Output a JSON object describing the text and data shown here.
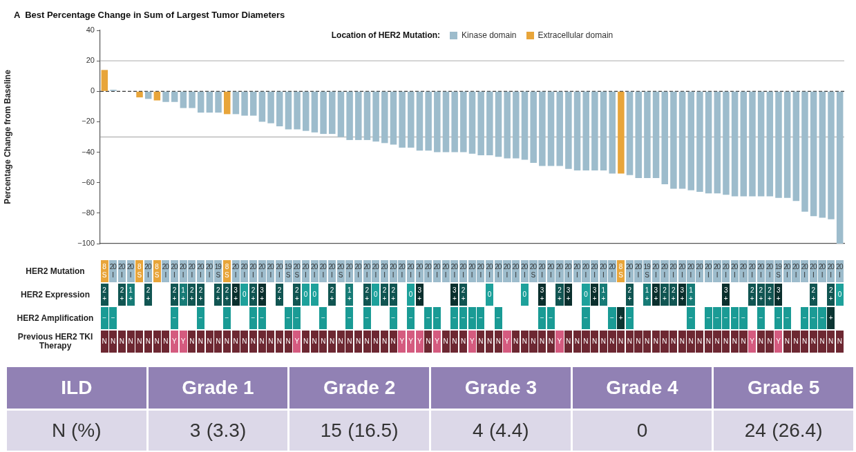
{
  "chart_data": [
    {
      "type": "bar",
      "title": "A  Best Percentage Change in Sum of Largest Tumor Diameters",
      "ylabel": "Percentage Change from Baseline",
      "legend_title": "Location of HER2 Mutation:",
      "legend": "top",
      "categories": [
        null,
        null,
        null,
        null,
        null,
        null,
        null,
        null,
        null,
        null,
        null,
        null,
        null,
        null,
        null,
        null,
        null,
        null,
        null,
        null,
        null,
        null,
        null,
        null,
        null,
        null,
        null,
        null,
        null,
        null,
        null,
        null,
        null,
        null,
        null,
        null,
        null,
        null,
        null,
        null,
        null,
        null,
        null,
        null,
        null,
        null,
        null,
        null,
        null,
        null,
        null,
        null,
        null,
        null,
        null,
        null,
        null,
        null,
        null,
        null,
        null,
        null,
        null,
        null,
        null,
        null,
        null,
        null,
        null,
        null,
        null,
        null,
        null,
        null,
        null,
        null,
        null,
        null,
        null,
        null,
        null,
        null,
        null,
        null,
        null
      ],
      "series": [
        {
          "name": "Kinase domain",
          "color": "#9dbccc",
          "values": [
            null,
            1,
            0,
            0,
            null,
            -5,
            null,
            -7,
            -7,
            -11,
            -11,
            -14,
            -14,
            -14,
            null,
            -15,
            -16,
            -16,
            -20,
            -21,
            -23,
            -25,
            -25,
            -26,
            -27,
            -28,
            -28,
            -30,
            -32,
            -32,
            -32,
            -33,
            -34,
            -35,
            -37,
            -37,
            -39,
            -39,
            -40,
            -40,
            -40,
            -40,
            -41,
            -42,
            -42,
            -43,
            -44,
            -44,
            -45,
            -47,
            -49,
            -49,
            -49,
            -51,
            -52,
            -52,
            -52,
            -52,
            -54,
            null,
            -55,
            -57,
            -57,
            -57,
            -61,
            -64,
            -64,
            -65,
            -66,
            -67,
            -67,
            -68,
            -69,
            -69,
            -69,
            -69,
            -69,
            -70,
            -70,
            -72,
            -79,
            -82,
            -83,
            -84,
            -100
          ]
        },
        {
          "name": "Extracellular domain",
          "color": "#e8a53a",
          "values": [
            14,
            null,
            null,
            null,
            -4,
            null,
            -6,
            null,
            null,
            null,
            null,
            null,
            null,
            null,
            -15,
            null,
            null,
            null,
            null,
            null,
            null,
            null,
            null,
            null,
            null,
            null,
            null,
            null,
            null,
            null,
            null,
            null,
            null,
            null,
            null,
            null,
            null,
            null,
            null,
            null,
            null,
            null,
            null,
            null,
            null,
            null,
            null,
            null,
            null,
            null,
            null,
            null,
            null,
            null,
            null,
            null,
            null,
            null,
            null,
            -54,
            null,
            null,
            null,
            null,
            null,
            null,
            null,
            null,
            null,
            null,
            null,
            null,
            null,
            null,
            null,
            null,
            null,
            null,
            null,
            null,
            null,
            null,
            null,
            null,
            null
          ]
        }
      ],
      "ylim": [
        -100,
        40
      ],
      "yticks": [
        -100,
        -80,
        -60,
        -40,
        -20,
        0,
        20,
        40
      ],
      "tick_labels": "y",
      "ref_lines": [
        {
          "axis": "y",
          "value": 0,
          "color": "#333333",
          "line_style": "dashed"
        },
        {
          "axis": "y",
          "value": 20,
          "color": "#bbbbbb",
          "line_style": "solid"
        },
        {
          "axis": "y",
          "value": -30,
          "color": "#bbbbbb",
          "line_style": "solid"
        }
      ]
    },
    {
      "type": "heatmap",
      "categories": [
        null,
        null,
        null,
        null,
        null,
        null,
        null,
        null,
        null,
        null,
        null,
        null,
        null,
        null,
        null,
        null,
        null,
        null,
        null,
        null,
        null,
        null,
        null,
        null,
        null,
        null,
        null,
        null,
        null,
        null,
        null,
        null,
        null,
        null,
        null,
        null,
        null,
        null,
        null,
        null,
        null,
        null,
        null,
        null,
        null,
        null,
        null,
        null,
        null,
        null,
        null,
        null,
        null,
        null,
        null,
        null,
        null,
        null,
        null,
        null,
        null,
        null,
        null,
        null,
        null,
        null,
        null,
        null,
        null,
        null,
        null,
        null,
        null,
        null,
        null,
        null,
        null,
        null,
        null,
        null,
        null,
        null,
        null,
        null,
        null
      ],
      "y_categories": [
        "HER2 Mutation",
        "HER2 Expression",
        "HER2 Amplification",
        "Previous HER2 TKI Therapy"
      ],
      "cells": [
        [
          8,
          20,
          20,
          20,
          8,
          20,
          8,
          20,
          20,
          20,
          20,
          20,
          20,
          19,
          8,
          20,
          20,
          20,
          20,
          20,
          20,
          19,
          20,
          20,
          20,
          20,
          20,
          20,
          20,
          20,
          20,
          20,
          20,
          20,
          20,
          20,
          20,
          20,
          20,
          20,
          20,
          20,
          20,
          20,
          20,
          20,
          20,
          20,
          20,
          20,
          20,
          20,
          20,
          20,
          20,
          20,
          20,
          20,
          20,
          8,
          20,
          20,
          19,
          20,
          20,
          20,
          20,
          20,
          20,
          20,
          20,
          20,
          20,
          20,
          20,
          20,
          20,
          19,
          20,
          20,
          20,
          20,
          20,
          20,
          20
        ],
        [
          2,
          null,
          2,
          1,
          null,
          2,
          null,
          null,
          2,
          1,
          2,
          2,
          null,
          2,
          2,
          3,
          0,
          2,
          3,
          null,
          2,
          null,
          2,
          0,
          0,
          null,
          2,
          null,
          1,
          null,
          2,
          0,
          2,
          2,
          null,
          0,
          3,
          null,
          null,
          null,
          3,
          2,
          null,
          null,
          0,
          null,
          null,
          null,
          0,
          null,
          3,
          null,
          2,
          3,
          null,
          0,
          3,
          1,
          null,
          null,
          2,
          null,
          1,
          3,
          2,
          2,
          3,
          1,
          null,
          null,
          null,
          3,
          null,
          null,
          2,
          2,
          2,
          3,
          null,
          null,
          null,
          2,
          null,
          2,
          0
        ],
        [
          null,
          null,
          null,
          null,
          null,
          null,
          null,
          null,
          null,
          null,
          null,
          null,
          null,
          null,
          null,
          null,
          null,
          null,
          null,
          null,
          null,
          null,
          null,
          null,
          null,
          null,
          null,
          null,
          null,
          null,
          null,
          null,
          null,
          null,
          null,
          null,
          null,
          null,
          null,
          null,
          null,
          null,
          null,
          null,
          null,
          null,
          null,
          null,
          null,
          null,
          null,
          null,
          null,
          null,
          null,
          null,
          null,
          null,
          null,
          null,
          null,
          null,
          null,
          null,
          null,
          null,
          null,
          null,
          null,
          null,
          null,
          null,
          null,
          null,
          null,
          null,
          null,
          null,
          null,
          null,
          null,
          null,
          null,
          null,
          null
        ],
        [
          null,
          null,
          null,
          null,
          null,
          null,
          null,
          null,
          null,
          null,
          null,
          null,
          null,
          null,
          null,
          null,
          null,
          null,
          null,
          null,
          null,
          null,
          null,
          null,
          null,
          null,
          null,
          null,
          null,
          null,
          null,
          null,
          null,
          null,
          null,
          null,
          null,
          null,
          null,
          null,
          null,
          null,
          null,
          null,
          null,
          null,
          null,
          null,
          null,
          null,
          null,
          null,
          null,
          null,
          null,
          null,
          null,
          null,
          null,
          null,
          null,
          null,
          null,
          null,
          null,
          null,
          null,
          null,
          null,
          null,
          null,
          null,
          null,
          null,
          null,
          null,
          null,
          null,
          null,
          null,
          null,
          null,
          null,
          null,
          null
        ]
      ],
      "cell_labels": [
        [
          "8 S",
          "20 I",
          "20 I",
          "20 I",
          "8 S",
          "20 I",
          "8 S",
          "20 I",
          "20 I",
          "20 I",
          "20 I",
          "20 I",
          "20 I",
          "19 S",
          "8 S",
          "20 I",
          "20 I",
          "20 I",
          "20 I",
          "20 I",
          "20 I",
          "19 S",
          "20 S",
          "20 I",
          "20 I",
          "20 I",
          "20 I",
          "20 S",
          "20 I",
          "20 I",
          "20 I",
          "20 I",
          "20 I",
          "20 I",
          "20 I",
          "20 I",
          "20 I",
          "20 I",
          "20 I",
          "20 I",
          "20 I",
          "20 I",
          "20 I",
          "20 I",
          "20 I",
          "20 I",
          "20 I",
          "20 I",
          "20 I",
          "20 S",
          "20 I",
          "20 I",
          "20 I",
          "20 I",
          "20 I",
          "20 I",
          "20 I",
          "20 I",
          "20 I",
          "8 S",
          "20 I",
          "20 I",
          "19 S",
          "20 I",
          "20 I",
          "20 I",
          "20 I",
          "20 I",
          "20 I",
          "20 I",
          "20 I",
          "20 I",
          "20 I",
          "20 I",
          "20 I",
          "20 I",
          "20 I",
          "19 S",
          "20 I",
          "20 I",
          "20 I",
          "20 I",
          "20 I",
          "20 I",
          "20 I"
        ],
        [
          "2 +",
          null,
          "2 +",
          "1 +",
          null,
          "2 +",
          null,
          null,
          "2 +",
          "1 +",
          "2 +",
          "2 +",
          null,
          "2 +",
          "2 +",
          "3 +",
          "0",
          "2 +",
          "3 +",
          null,
          "2 +",
          null,
          "2 +",
          "0",
          "0",
          null,
          "2 +",
          null,
          "1 +",
          null,
          "2 +",
          "0",
          "2 +",
          "2 +",
          null,
          "0",
          "3 +",
          null,
          null,
          null,
          "3 +",
          "2 +",
          null,
          null,
          "0",
          null,
          null,
          null,
          "0",
          null,
          "3 +",
          null,
          "2 +",
          "3 +",
          null,
          "0",
          "3 +",
          "1 +",
          null,
          null,
          "2 +",
          null,
          "1 +",
          "3 +",
          "2 +",
          "2 +",
          "3 +",
          "1 +",
          null,
          null,
          null,
          "3 +",
          null,
          null,
          "2 +",
          "2 +",
          "2 +",
          "3 +",
          null,
          null,
          null,
          "2 +",
          null,
          "2 +",
          "0"
        ],
        [
          "−",
          "−",
          null,
          null,
          null,
          null,
          null,
          null,
          "−",
          null,
          null,
          "−",
          null,
          null,
          "−",
          null,
          null,
          "−",
          "−",
          null,
          null,
          "−",
          "−",
          null,
          null,
          "−",
          null,
          null,
          "−",
          null,
          "−",
          null,
          null,
          "−",
          null,
          "−",
          null,
          "−",
          "−",
          null,
          "−",
          "−",
          "−",
          "−",
          null,
          "−",
          null,
          null,
          null,
          null,
          "−",
          "−",
          null,
          null,
          null,
          "−",
          null,
          null,
          "−",
          "+",
          "−",
          null,
          null,
          null,
          null,
          null,
          null,
          "−",
          null,
          "−",
          "−",
          "−",
          "−",
          "−",
          null,
          "−",
          null,
          "−",
          "−",
          null,
          "−",
          "−",
          "−",
          "+",
          null
        ],
        [
          "N",
          "N",
          "N",
          "N",
          "N",
          "N",
          "N",
          "N",
          "Y",
          "Y",
          "N",
          "N",
          "N",
          "N",
          "N",
          "N",
          "N",
          "N",
          "N",
          "N",
          "N",
          "N",
          "Y",
          "N",
          "N",
          "N",
          "N",
          "N",
          "N",
          "N",
          "N",
          "N",
          "N",
          "N",
          "Y",
          "Y",
          "Y",
          "N",
          "Y",
          "N",
          "N",
          "N",
          "Y",
          "N",
          "N",
          "N",
          "Y",
          "N",
          "N",
          "N",
          "N",
          "N",
          "Y",
          "N",
          "N",
          "N",
          "N",
          "N",
          "N",
          "N",
          "N",
          "N",
          "N",
          "N",
          "N",
          "N",
          "N",
          "N",
          "N",
          "N",
          "N",
          "N",
          "N",
          "N",
          "Y",
          "N",
          "N",
          "Y",
          "N",
          "N",
          "N",
          "N",
          "N",
          "N",
          "N"
        ]
      ]
    },
    {
      "type": "heatmap",
      "ylabel": "ILD",
      "categories": [
        "Grade 1",
        "Grade 2",
        "Grade 3",
        "Grade 4",
        "Grade 5"
      ],
      "y_categories": [
        "N (%)"
      ],
      "cells": [
        [
          null,
          null,
          null,
          null,
          null
        ]
      ],
      "cell_labels": [
        [
          "3 (3.3)",
          "15 (16.5)",
          "4 (4.4)",
          "0",
          "24 (26.4)"
        ]
      ]
    }
  ]
}
